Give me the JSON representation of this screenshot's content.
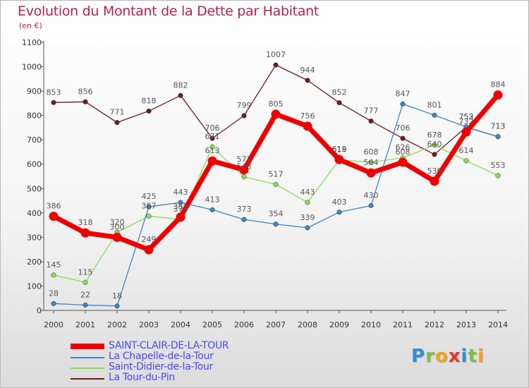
{
  "chart_data": {
    "type": "line",
    "title": "Evolution du Montant de la Dette par Habitant",
    "ylabel": "(en €)",
    "xlabel": "",
    "ylim": [
      0,
      1100
    ],
    "yticks": [
      0,
      100,
      200,
      300,
      400,
      500,
      600,
      700,
      800,
      900,
      1000,
      1100
    ],
    "x": [
      "2000",
      "2001",
      "2002",
      "2003",
      "2004",
      "2005",
      "2006",
      "2007",
      "2008",
      "2009",
      "2010",
      "2011",
      "2012",
      "2013",
      "2014"
    ],
    "series": [
      {
        "name": "La Tour-du-Pin",
        "color": "#6e1a1e",
        "values": [
          853,
          856,
          771,
          818,
          882,
          706,
          799,
          1007,
          944,
          852,
          777,
          706,
          640,
          752,
          713
        ]
      },
      {
        "name": "Saint-Didier-de-la-Tour",
        "color": "#88dd55",
        "values": [
          145,
          115,
          320,
          387,
          373,
          671,
          548,
          517,
          443,
          618,
          608,
          626,
          678,
          614,
          553
        ]
      },
      {
        "name": "La Chapelle-de-la-Tour",
        "color": "#3b86c6",
        "values": [
          28,
          22,
          18,
          425,
          443,
          413,
          373,
          354,
          339,
          403,
          430,
          847,
          801,
          753,
          713
        ]
      },
      {
        "name": "SAINT-CLAIR-DE-LA-TOUR",
        "color": "#ee0000",
        "values": [
          386,
          318,
          300,
          249,
          383,
          613,
          577,
          805,
          756,
          619,
          564,
          608,
          530,
          732,
          884
        ]
      }
    ],
    "legend": [
      "SAINT-CLAIR-DE-LA-TOUR",
      "La Chapelle-de-la-Tour",
      "Saint-Didier-de-la-Tour",
      "La Tour-du-Pin"
    ],
    "legend_position": "bottom-left",
    "grid": false
  },
  "logo": {
    "text": "Proxiti",
    "letters": [
      "P",
      "r",
      "o",
      "x",
      "i",
      "t",
      "i"
    ],
    "colors": [
      "#2f8fd8",
      "#7ac143",
      "#f2a21b",
      "#e8352e",
      "#2f8fd8",
      "#7ac143",
      "#f2a21b"
    ]
  }
}
